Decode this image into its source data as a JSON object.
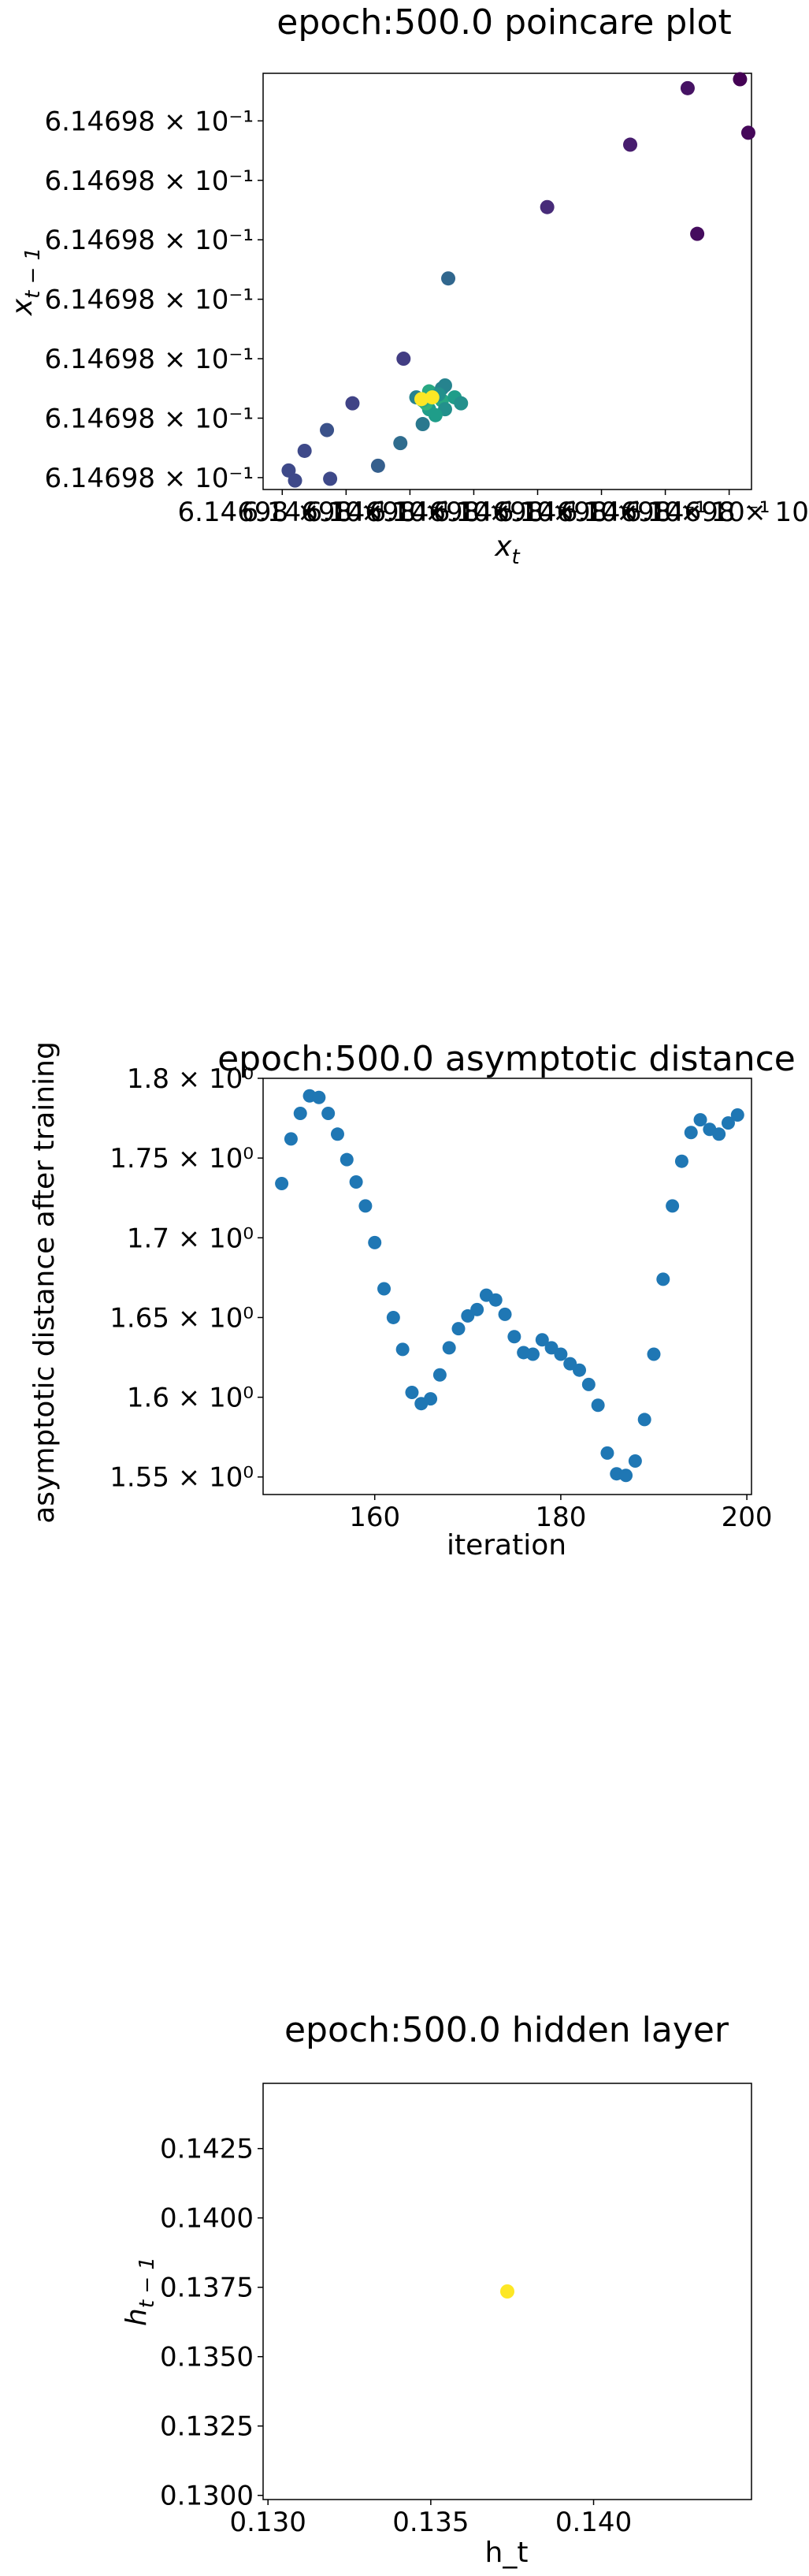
{
  "chart_data": [
    {
      "type": "scatter",
      "title": "epoch:500.0 poincare plot",
      "xlabel": "x_t",
      "ylabel": "x_{t-1}",
      "scale": "log",
      "x_ticks": [
        {
          "pos": 0,
          "label": "6.14698 × 10⁻¹"
        },
        {
          "pos": 1,
          "label": "6.14698 × 10⁻¹"
        },
        {
          "pos": 2,
          "label": "6.14698 × 10⁻¹"
        },
        {
          "pos": 3,
          "label": "6.14698 × 10⁻¹"
        },
        {
          "pos": 4,
          "label": "6.14698 × 10⁻¹"
        },
        {
          "pos": 5,
          "label": "6.14698 × 10⁻¹"
        },
        {
          "pos": 6,
          "label": "6.14698 × 10⁻¹"
        },
        {
          "pos": 7,
          "label": "6.14698 × 10⁻¹"
        }
      ],
      "y_ticks": [
        {
          "pos": 0,
          "label": "6.14698 × 10⁻¹"
        },
        {
          "pos": 1,
          "label": "6.14698 × 10⁻¹"
        },
        {
          "pos": 2,
          "label": "6.14698 × 10⁻¹"
        },
        {
          "pos": 3,
          "label": "6.14698 × 10⁻¹"
        },
        {
          "pos": 4,
          "label": "6.14698 × 10⁻¹"
        },
        {
          "pos": 5,
          "label": "6.14698 × 10⁻¹"
        },
        {
          "pos": 6,
          "label": "6.14698 × 10⁻¹"
        }
      ],
      "tick_range": [
        -0.3,
        7.35
      ],
      "y_tick_range": [
        -0.2,
        6.8
      ],
      "points": [
        {
          "x": 7.17,
          "y": 6.7,
          "c": 0.0
        },
        {
          "x": 7.3,
          "y": 5.8,
          "c": 0.02
        },
        {
          "x": 6.35,
          "y": 6.55,
          "c": 0.05
        },
        {
          "x": 5.45,
          "y": 5.6,
          "c": 0.08
        },
        {
          "x": 6.5,
          "y": 4.1,
          "c": 0.03
        },
        {
          "x": 4.15,
          "y": 4.55,
          "c": 0.12
        },
        {
          "x": 2.6,
          "y": 3.35,
          "c": 0.33
        },
        {
          "x": 1.9,
          "y": 2.0,
          "c": 0.18
        },
        {
          "x": 1.1,
          "y": 1.25,
          "c": 0.2
        },
        {
          "x": 0.7,
          "y": 0.8,
          "c": 0.25
        },
        {
          "x": 0.35,
          "y": 0.45,
          "c": 0.22
        },
        {
          "x": 0.1,
          "y": 0.12,
          "c": 0.22
        },
        {
          "x": 0.2,
          "y": -0.05,
          "c": 0.22
        },
        {
          "x": 0.75,
          "y": -0.02,
          "c": 0.22
        },
        {
          "x": 1.5,
          "y": 0.2,
          "c": 0.3
        },
        {
          "x": 1.85,
          "y": 0.58,
          "c": 0.35
        },
        {
          "x": 2.2,
          "y": 0.9,
          "c": 0.4
        },
        {
          "x": 2.3,
          "y": 1.15,
          "c": 0.55
        },
        {
          "x": 2.5,
          "y": 1.3,
          "c": 0.6
        },
        {
          "x": 2.7,
          "y": 1.35,
          "c": 0.55
        },
        {
          "x": 2.8,
          "y": 1.25,
          "c": 0.5
        },
        {
          "x": 2.55,
          "y": 1.15,
          "c": 0.5
        },
        {
          "x": 2.4,
          "y": 1.05,
          "c": 0.55
        },
        {
          "x": 2.3,
          "y": 1.45,
          "c": 0.6
        },
        {
          "x": 2.25,
          "y": 1.25,
          "c": 0.65
        },
        {
          "x": 2.1,
          "y": 1.35,
          "c": 0.45
        },
        {
          "x": 2.5,
          "y": 1.5,
          "c": 0.45
        },
        {
          "x": 2.55,
          "y": 1.55,
          "c": 0.45
        },
        {
          "x": 2.45,
          "y": 1.4,
          "c": 0.5
        },
        {
          "x": 2.2,
          "y": 1.3,
          "c": 0.6
        },
        {
          "x": 2.35,
          "y": 1.35,
          "c": 1.0
        },
        {
          "x": 2.18,
          "y": 1.32,
          "c": 1.0
        }
      ]
    },
    {
      "type": "scatter",
      "title": "epoch:500.0 asymptotic distance",
      "xlabel": "iteration",
      "ylabel": "asymptotic distance after training",
      "xlim": [
        148,
        200.5
      ],
      "ylim": [
        1.539,
        1.8
      ],
      "color": "#1f77b4",
      "x_ticks": [
        {
          "value": 160,
          "label": "160"
        },
        {
          "value": 180,
          "label": "180"
        },
        {
          "value": 200,
          "label": "200"
        }
      ],
      "y_ticks": [
        {
          "value": 1.55,
          "label": "1.55 × 10⁰"
        },
        {
          "value": 1.6,
          "label": "1.6 × 10⁰"
        },
        {
          "value": 1.65,
          "label": "1.65 × 10⁰"
        },
        {
          "value": 1.7,
          "label": "1.7 × 10⁰"
        },
        {
          "value": 1.75,
          "label": "1.75 × 10⁰"
        },
        {
          "value": 1.8,
          "label": "1.8 × 10⁰"
        }
      ],
      "x": [
        150,
        151,
        152,
        153,
        154,
        155,
        156,
        157,
        158,
        159,
        160,
        161,
        162,
        163,
        164,
        165,
        166,
        167,
        168,
        169,
        170,
        171,
        172,
        173,
        174,
        175,
        176,
        177,
        178,
        179,
        180,
        181,
        182,
        183,
        184,
        185,
        186,
        187,
        188,
        189,
        190,
        191,
        192,
        193,
        194,
        195,
        196,
        197,
        198,
        199
      ],
      "y": [
        1.734,
        1.762,
        1.778,
        1.789,
        1.788,
        1.778,
        1.765,
        1.749,
        1.735,
        1.72,
        1.697,
        1.668,
        1.65,
        1.63,
        1.603,
        1.596,
        1.599,
        1.614,
        1.631,
        1.643,
        1.651,
        1.655,
        1.664,
        1.661,
        1.652,
        1.638,
        1.628,
        1.627,
        1.636,
        1.631,
        1.627,
        1.621,
        1.617,
        1.608,
        1.595,
        1.565,
        1.552,
        1.551,
        1.56,
        1.586,
        1.627,
        1.674,
        1.72,
        1.748,
        1.766,
        1.774,
        1.768,
        1.765,
        1.772,
        1.777
      ]
    },
    {
      "type": "scatter",
      "title": "epoch:500.0 hidden layer",
      "xlabel": "h_t",
      "ylabel": "h_{t-1}",
      "xlim": [
        0.12985,
        0.14485
      ],
      "ylim": [
        0.12985,
        0.14485
      ],
      "x_ticks": [
        {
          "value": 0.13,
          "label": "0.130"
        },
        {
          "value": 0.135,
          "label": "0.135"
        },
        {
          "value": 0.14,
          "label": "0.140"
        }
      ],
      "y_ticks": [
        {
          "value": 0.13,
          "label": "0.1300"
        },
        {
          "value": 0.1325,
          "label": "0.1325"
        },
        {
          "value": 0.135,
          "label": "0.1350"
        },
        {
          "value": 0.1375,
          "label": "0.1375"
        },
        {
          "value": 0.14,
          "label": "0.1400"
        },
        {
          "value": 0.1425,
          "label": "0.1425"
        }
      ],
      "points": [
        {
          "x": 0.13735,
          "y": 0.13735,
          "c": 1.0
        }
      ]
    }
  ]
}
